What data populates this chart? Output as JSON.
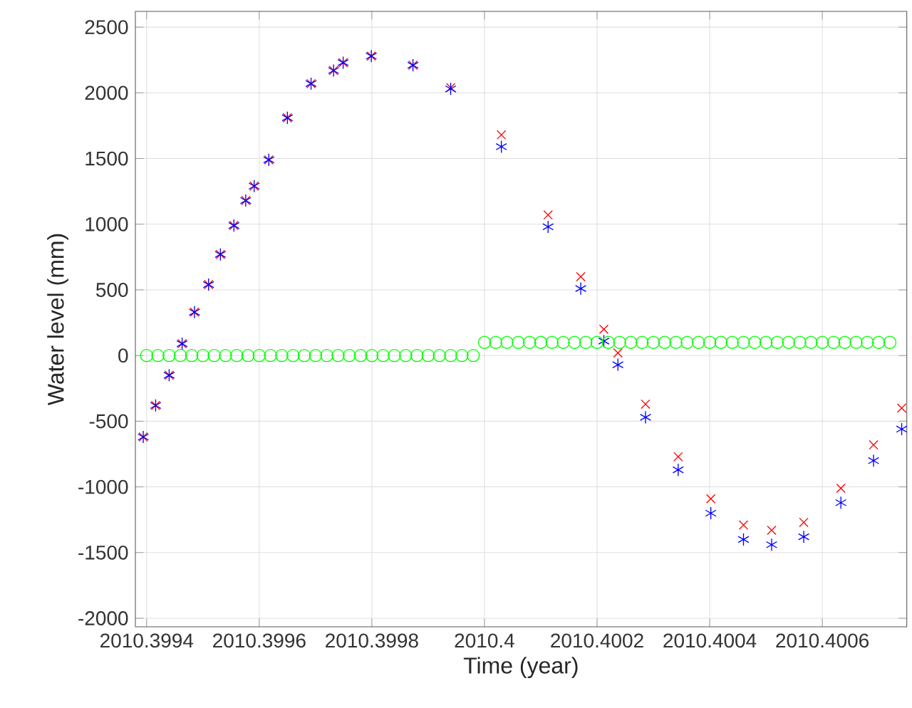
{
  "chart_data": {
    "type": "scatter",
    "xlabel": "Time (year)",
    "ylabel": "Water level (mm)",
    "xlim": [
      2010.39938,
      2010.40075
    ],
    "ylim": [
      -2065,
      2620
    ],
    "xticks": [
      2010.3994,
      2010.3996,
      2010.3998,
      2010.4,
      2010.4002,
      2010.4004,
      2010.4006
    ],
    "yticks": [
      -2000,
      -1500,
      -1000,
      -500,
      0,
      500,
      1000,
      1500,
      2000,
      2500
    ],
    "grid": true,
    "series": [
      {
        "color": "#ff0000",
        "marker": "cross",
        "x": [
          2010.399394,
          2010.399416,
          2010.39944,
          2010.399463,
          2010.399485,
          2010.39951,
          2010.399531,
          2010.399555,
          2010.399576,
          2010.399591,
          2010.399617,
          2010.39965,
          2010.399692,
          2010.399732,
          2010.399749,
          2010.399799,
          2010.399873,
          2010.39994,
          2010.40003,
          2010.400113,
          2010.400171,
          2010.400212,
          2010.400237,
          2010.400286,
          2010.400344,
          2010.400402,
          2010.40046,
          2010.40051,
          2010.400567,
          2010.400633,
          2010.400691,
          2010.400741
        ],
        "values": [
          -620,
          -380,
          -150,
          90,
          330,
          540,
          770,
          990,
          1180,
          1290,
          1490,
          1810,
          2070,
          2170,
          2230,
          2280,
          2210,
          2040,
          1680,
          1070,
          600,
          200,
          20,
          -370,
          -770,
          -1090,
          -1290,
          -1330,
          -1270,
          -1010,
          -680,
          -400
        ]
      },
      {
        "color": "#0000ff",
        "x": [
          2010.399394,
          2010.399416,
          2010.39944,
          2010.399463,
          2010.399485,
          2010.39951,
          2010.399531,
          2010.399555,
          2010.399576,
          2010.399591,
          2010.399617,
          2010.39965,
          2010.399692,
          2010.399732,
          2010.399749,
          2010.399799,
          2010.399873,
          2010.39994,
          2010.40003,
          2010.400113,
          2010.400171,
          2010.400212,
          2010.400237,
          2010.400286,
          2010.400344,
          2010.400402,
          2010.40046,
          2010.40051,
          2010.400567,
          2010.400633,
          2010.400691,
          2010.400741
        ],
        "values": [
          -620,
          -380,
          -150,
          90,
          330,
          540,
          770,
          990,
          1180,
          1290,
          1490,
          1810,
          2070,
          2170,
          2230,
          2280,
          2210,
          2030,
          1590,
          980,
          510,
          110,
          -70,
          -470,
          -870,
          -1200,
          -1400,
          -1440,
          -1380,
          -1120,
          -800,
          -560
        ]
      },
      {
        "color": "#00ff00",
        "marker": "circle",
        "x": [
          2010.3994,
          2010.39942,
          2010.39944,
          2010.39946,
          2010.39948,
          2010.3995,
          2010.39952,
          2010.39954,
          2010.39956,
          2010.39958,
          2010.3996,
          2010.39962,
          2010.39964,
          2010.39966,
          2010.39968,
          2010.3997,
          2010.39972,
          2010.39974,
          2010.39976,
          2010.39978,
          2010.3998,
          2010.39982,
          2010.39984,
          2010.39986,
          2010.39988,
          2010.3999,
          2010.39992,
          2010.39994,
          2010.39996,
          2010.39998,
          2010.4,
          2010.40002,
          2010.40004,
          2010.40006,
          2010.40008,
          2010.4001,
          2010.40012,
          2010.40014,
          2010.40016,
          2010.40018,
          2010.4002,
          2010.40022,
          2010.40024,
          2010.40026,
          2010.40028,
          2010.4003,
          2010.40032,
          2010.40034,
          2010.40036,
          2010.40038,
          2010.4004,
          2010.40042,
          2010.40044,
          2010.40046,
          2010.40048,
          2010.4005,
          2010.40052,
          2010.40054,
          2010.40056,
          2010.40058,
          2010.4006,
          2010.40062,
          2010.40064,
          2010.40066,
          2010.40068,
          2010.4007,
          2010.40072
        ],
        "values": [
          0,
          0,
          0,
          0,
          0,
          0,
          0,
          0,
          0,
          0,
          0,
          0,
          0,
          0,
          0,
          0,
          0,
          0,
          0,
          0,
          0,
          0,
          0,
          0,
          0,
          0,
          0,
          0,
          0,
          0,
          100,
          100,
          100,
          100,
          100,
          100,
          100,
          100,
          100,
          100,
          100,
          100,
          100,
          100,
          100,
          100,
          100,
          100,
          100,
          100,
          100,
          100,
          100,
          100,
          100,
          100,
          100,
          100,
          100,
          100,
          100,
          100,
          100,
          100,
          100,
          100,
          100
        ]
      }
    ]
  }
}
